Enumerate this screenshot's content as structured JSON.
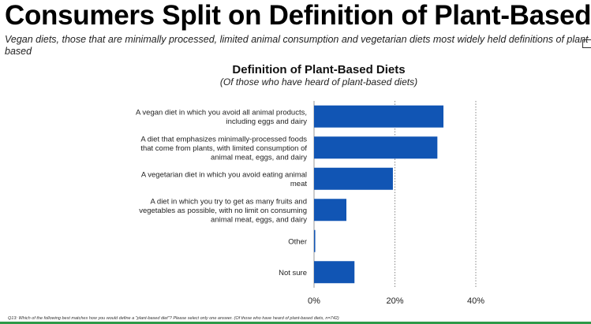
{
  "header": {
    "title": "Consumers Split on Definition of Plant-Based",
    "subtitle": "Vegan diets, those that are minimally processed, limited animal consumption and vegetarian diets most widely held definitions of plant-based"
  },
  "footnote": "Q13: Which of the following best matches how you would define a \"plant-based diet\"? Please select only one answer. (Of those who have heard of plant-based diets, n=742)",
  "colors": {
    "bar": "#1155b4",
    "rule": "#2e9a48"
  },
  "chart_data": {
    "type": "bar",
    "orientation": "horizontal",
    "title": "Definition of Plant-Based Diets",
    "subtitle": "(Of those who have heard of plant-based diets)",
    "categories": [
      [
        "A vegan diet in which you avoid all animal products,",
        "including eggs and dairy"
      ],
      [
        "A diet that emphasizes minimally-processed foods",
        "that come from plants, with limited consumption of",
        "animal meat, eggs, and dairy"
      ],
      [
        "A vegetarian diet in which you avoid eating animal",
        "meat"
      ],
      [
        "A diet in which you try to get as many fruits and",
        "vegetables as possible, with no limit on consuming",
        "animal meat, eggs, and dairy"
      ],
      [
        "Other"
      ],
      [
        "Not sure"
      ]
    ],
    "values": [
      32,
      30.5,
      19.5,
      8,
      0.3,
      10
    ],
    "xlim": [
      0,
      40
    ],
    "xticks": [
      "0%",
      "20%",
      "40%"
    ],
    "grid": "dotted vertical at 20% and 40%"
  }
}
